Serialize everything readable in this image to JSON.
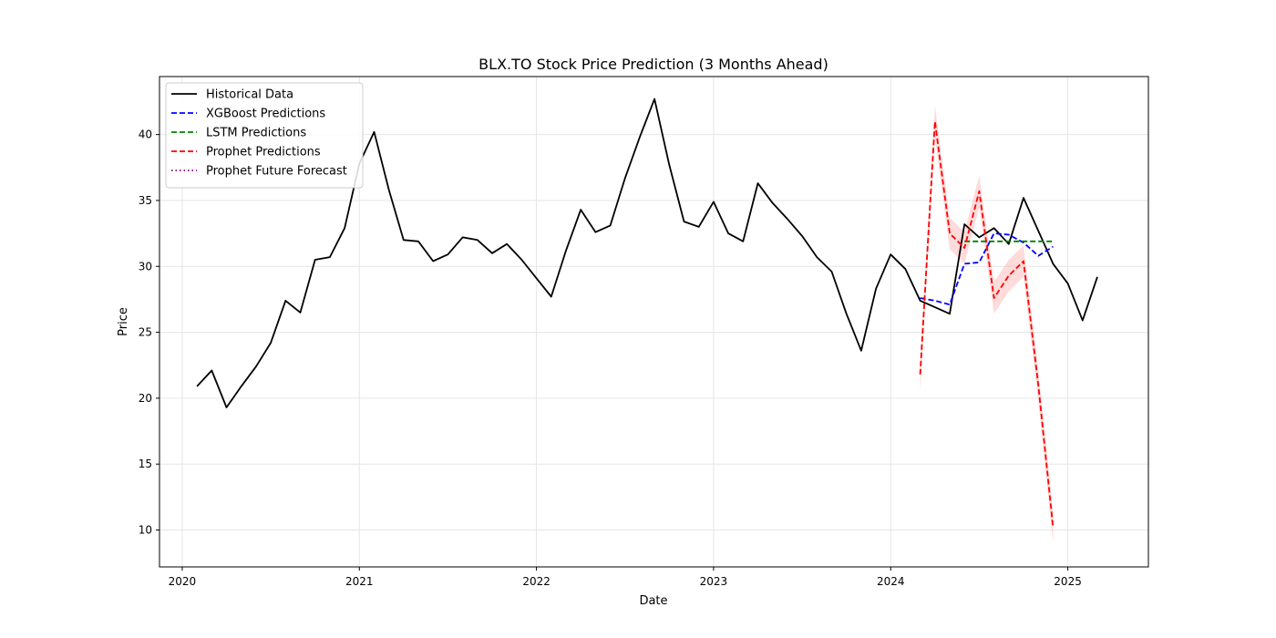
{
  "chart_data": {
    "type": "line",
    "title": "BLX.TO Stock Price Prediction (3 Months Ahead)",
    "xlabel": "Date",
    "ylabel": "Price",
    "xlim": [
      "2019-11-15",
      "2025-06-15"
    ],
    "ylim": [
      7.2,
      44.4
    ],
    "x_ticks": [
      "2020",
      "2021",
      "2022",
      "2023",
      "2024",
      "2025"
    ],
    "y_ticks": [
      10,
      15,
      20,
      25,
      30,
      35,
      40
    ],
    "grid": true,
    "legend_position": "top-left",
    "series": [
      {
        "name": "Historical Data",
        "color": "#000000",
        "style": "solid",
        "points": [
          [
            "2020-02-01",
            20.9
          ],
          [
            "2020-03-01",
            22.1
          ],
          [
            "2020-04-01",
            19.3
          ],
          [
            "2020-05-01",
            20.9
          ],
          [
            "2020-06-01",
            22.4
          ],
          [
            "2020-07-01",
            24.2
          ],
          [
            "2020-08-01",
            27.4
          ],
          [
            "2020-09-01",
            26.5
          ],
          [
            "2020-10-01",
            30.5
          ],
          [
            "2020-11-01",
            30.7
          ],
          [
            "2020-12-01",
            32.9
          ],
          [
            "2021-01-01",
            37.8
          ],
          [
            "2021-02-01",
            40.2
          ],
          [
            "2021-03-01",
            35.8
          ],
          [
            "2021-04-01",
            32.0
          ],
          [
            "2021-05-01",
            31.9
          ],
          [
            "2021-06-01",
            30.4
          ],
          [
            "2021-07-01",
            30.9
          ],
          [
            "2021-08-01",
            32.2
          ],
          [
            "2021-09-01",
            32.0
          ],
          [
            "2021-10-01",
            31.0
          ],
          [
            "2021-11-01",
            31.7
          ],
          [
            "2021-12-01",
            30.5
          ],
          [
            "2022-01-01",
            29.1
          ],
          [
            "2022-02-01",
            27.7
          ],
          [
            "2022-03-01",
            31.2
          ],
          [
            "2022-04-01",
            34.3
          ],
          [
            "2022-05-01",
            32.6
          ],
          [
            "2022-06-01",
            33.1
          ],
          [
            "2022-07-01",
            36.7
          ],
          [
            "2022-08-01",
            39.8
          ],
          [
            "2022-09-01",
            42.7
          ],
          [
            "2022-10-01",
            37.7
          ],
          [
            "2022-11-01",
            33.4
          ],
          [
            "2022-12-01",
            33.0
          ],
          [
            "2023-01-01",
            34.9
          ],
          [
            "2023-02-01",
            32.5
          ],
          [
            "2023-03-01",
            31.9
          ],
          [
            "2023-04-01",
            36.3
          ],
          [
            "2023-05-01",
            34.8
          ],
          [
            "2023-06-01",
            33.6
          ],
          [
            "2023-07-01",
            32.3
          ],
          [
            "2023-08-01",
            30.7
          ],
          [
            "2023-09-01",
            29.6
          ],
          [
            "2023-10-01",
            26.4
          ],
          [
            "2023-11-01",
            23.6
          ],
          [
            "2023-12-01",
            28.3
          ],
          [
            "2024-01-01",
            30.9
          ],
          [
            "2024-02-01",
            29.8
          ],
          [
            "2024-03-01",
            27.4
          ],
          [
            "2024-04-01",
            26.9
          ],
          [
            "2024-05-01",
            26.4
          ],
          [
            "2024-06-01",
            33.2
          ],
          [
            "2024-07-01",
            32.2
          ],
          [
            "2024-08-01",
            32.9
          ],
          [
            "2024-09-01",
            31.7
          ],
          [
            "2024-10-01",
            35.2
          ],
          [
            "2024-11-01",
            32.7
          ],
          [
            "2024-12-01",
            30.2
          ],
          [
            "2025-01-01",
            28.7
          ],
          [
            "2025-02-01",
            25.9
          ],
          [
            "2025-03-01",
            29.2
          ]
        ]
      },
      {
        "name": "XGBoost Predictions",
        "color": "#0000ff",
        "style": "dashed",
        "points": [
          [
            "2024-03-01",
            27.6
          ],
          [
            "2024-04-01",
            27.4
          ],
          [
            "2024-05-01",
            27.1
          ],
          [
            "2024-06-01",
            30.2
          ],
          [
            "2024-07-01",
            30.3
          ],
          [
            "2024-08-01",
            32.5
          ],
          [
            "2024-09-01",
            32.4
          ],
          [
            "2024-10-01",
            31.8
          ],
          [
            "2024-11-01",
            30.8
          ],
          [
            "2024-12-01",
            31.5
          ]
        ]
      },
      {
        "name": "LSTM Predictions",
        "color": "#008000",
        "style": "dashed",
        "points": [
          [
            "2024-06-01",
            31.9
          ],
          [
            "2024-07-01",
            31.9
          ],
          [
            "2024-08-01",
            31.9
          ],
          [
            "2024-09-01",
            31.9
          ],
          [
            "2024-10-01",
            31.9
          ],
          [
            "2024-11-01",
            31.9
          ],
          [
            "2024-12-01",
            31.9
          ]
        ]
      },
      {
        "name": "Prophet Predictions",
        "color": "#ff0000",
        "style": "dashed",
        "band_color": "#ff9999",
        "band_halfwidth": 1.2,
        "points": [
          [
            "2024-03-01",
            21.8
          ],
          [
            "2024-04-01",
            41.0
          ],
          [
            "2024-05-01",
            32.5
          ],
          [
            "2024-06-01",
            31.4
          ],
          [
            "2024-07-01",
            35.7
          ],
          [
            "2024-08-01",
            27.6
          ],
          [
            "2024-09-01",
            29.3
          ],
          [
            "2024-10-01",
            30.4
          ],
          [
            "2024-11-01",
            21.0
          ],
          [
            "2024-12-01",
            10.2
          ]
        ]
      },
      {
        "name": "Prophet Future Forecast",
        "color": "#800080",
        "style": "dotted",
        "points": []
      }
    ]
  }
}
